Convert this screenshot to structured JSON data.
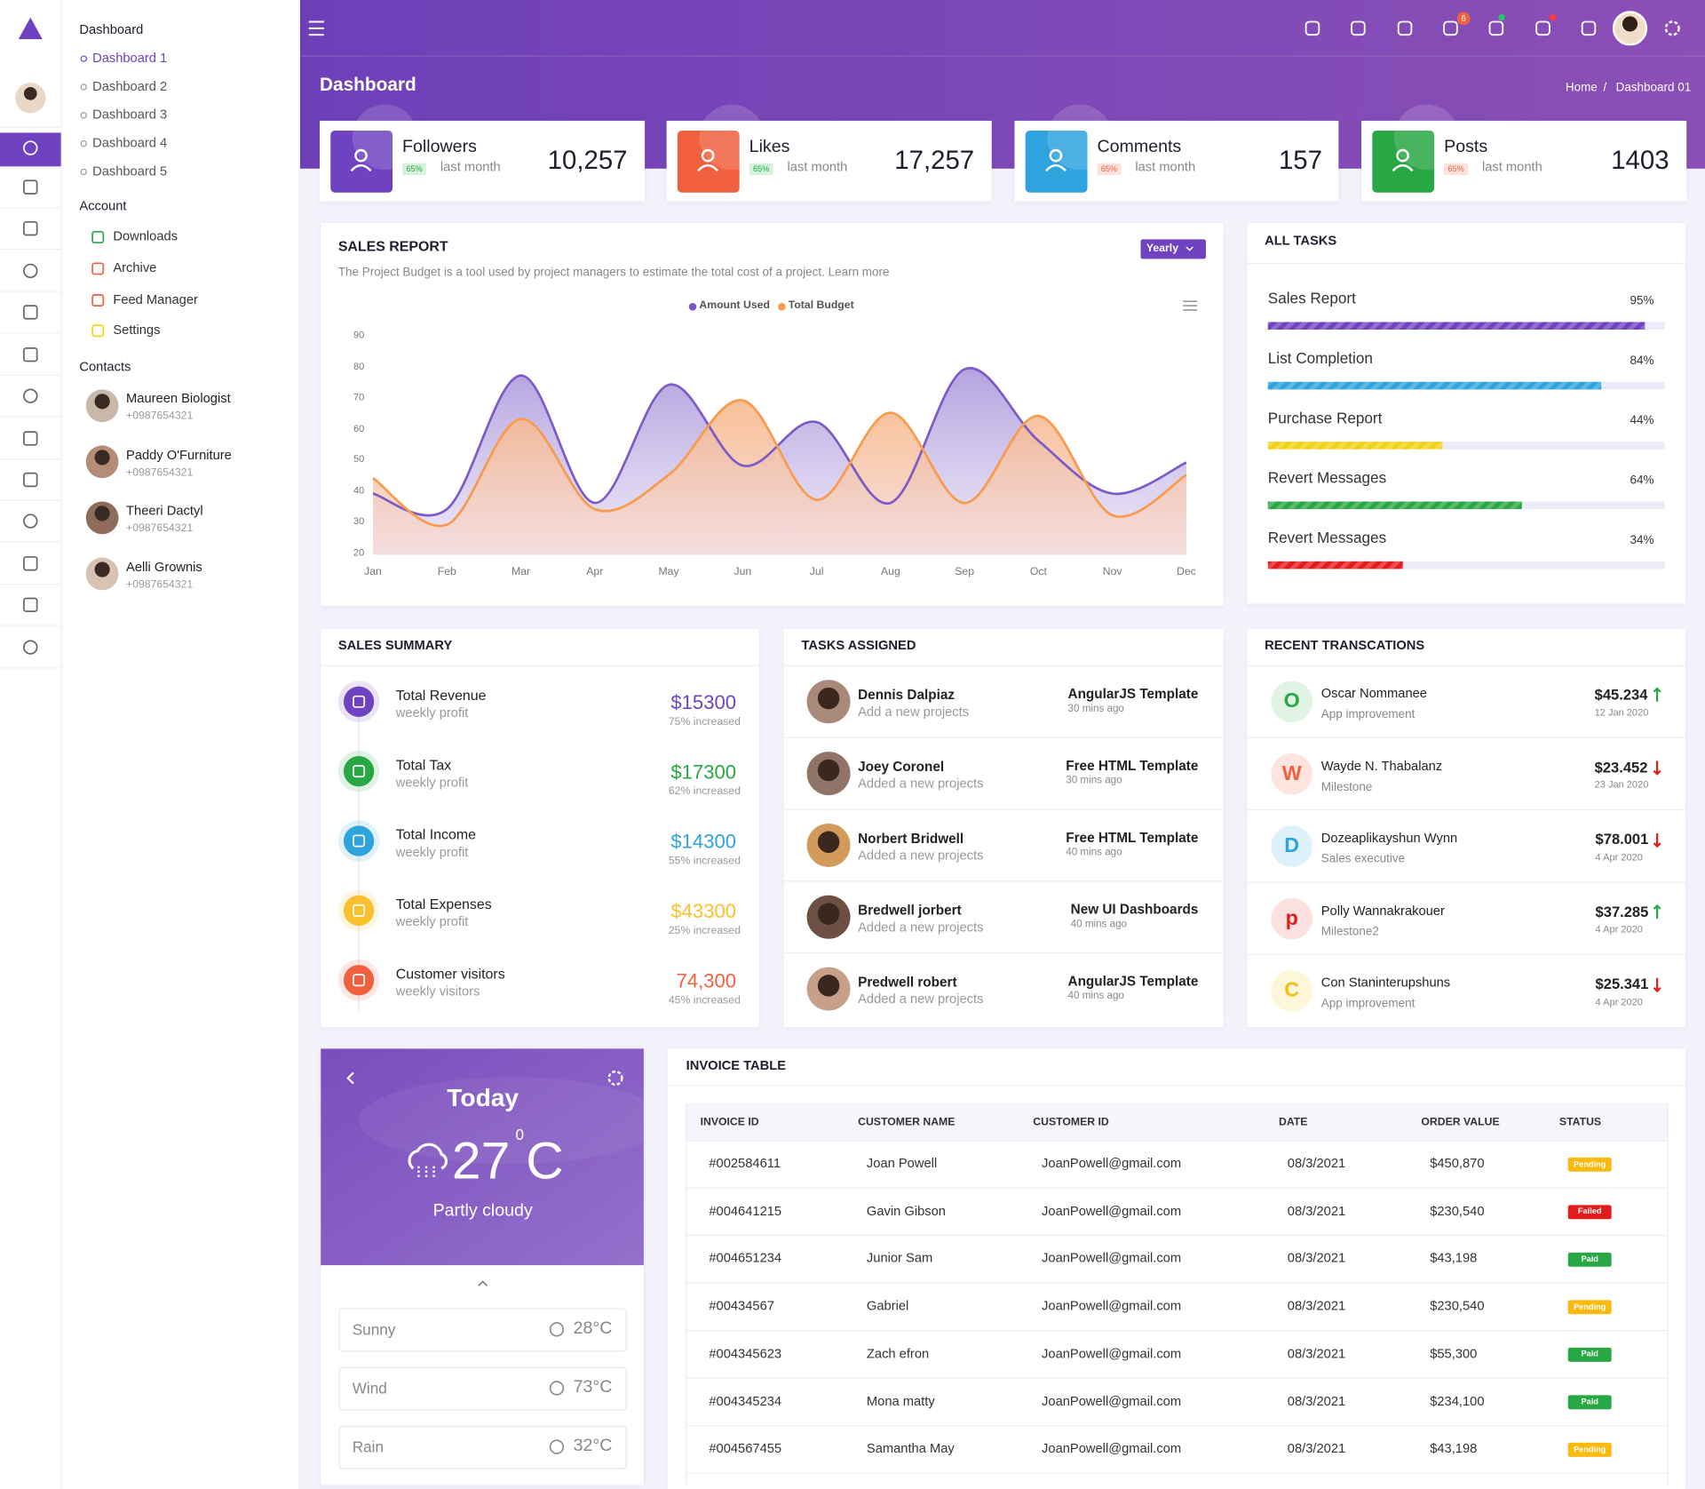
{
  "sidebar": {
    "dashboard_title": "Dashboard",
    "dashboard_items": [
      "Dashboard 1",
      "Dashboard 2",
      "Dashboard 3",
      "Dashboard 4",
      "Dashboard 5"
    ],
    "account_title": "Account",
    "account_items": [
      {
        "label": "Downloads",
        "color": "#28a745"
      },
      {
        "label": "Archive",
        "color": "#f0603f"
      },
      {
        "label": "Feed Manager",
        "color": "#f0603f"
      },
      {
        "label": "Settings",
        "color": "#f5d415"
      }
    ],
    "contacts_title": "Contacts",
    "contacts": [
      {
        "name": "Maureen Biologist",
        "phone": "+0987654321"
      },
      {
        "name": "Paddy O'Furniture",
        "phone": "+0987654321"
      },
      {
        "name": "Theeri Dactyl",
        "phone": "+0987654321"
      },
      {
        "name": "Aelli Grownis",
        "phone": "+0987654321"
      }
    ]
  },
  "header": {
    "title": "Dashboard",
    "breadcrumb_home": "Home",
    "breadcrumb_separator": "/",
    "breadcrumb_current": "Dashboard 01",
    "cart_badge": "6"
  },
  "stats": [
    {
      "title": "Followers",
      "badge": "65%",
      "period": "last month",
      "value": "10,257",
      "color": "#6f42c1",
      "badge_color": "#28a745",
      "badge_bg": "#d6f2dd"
    },
    {
      "title": "Likes",
      "badge": "65%",
      "period": "last month",
      "value": "17,257",
      "color": "#f0603f",
      "badge_color": "#28a745",
      "badge_bg": "#d6f2dd"
    },
    {
      "title": "Comments",
      "badge": "65%",
      "period": "last month",
      "value": "157",
      "color": "#2ea3dd",
      "badge_color": "#f0603f",
      "badge_bg": "#fde1dc"
    },
    {
      "title": "Posts",
      "badge": "65%",
      "period": "last month",
      "value": "1403",
      "color": "#28a745",
      "badge_color": "#f0603f",
      "badge_bg": "#fde1dc"
    }
  ],
  "chart_data": {
    "type": "area",
    "title": "SALES REPORT",
    "subtitle": "The Project Budget is a tool used by project managers to estimate the total cost of a project. Learn more",
    "button": "Yearly",
    "categories": [
      "Jan",
      "Feb",
      "Mar",
      "Apr",
      "May",
      "Jun",
      "Jul",
      "Aug",
      "Sep",
      "Oct",
      "Nov",
      "Dec"
    ],
    "series": [
      {
        "name": "Amount Used",
        "color": "#7d5bc6",
        "values": [
          39,
          34,
          77,
          36,
          74,
          48,
          62,
          36,
          79,
          56,
          39,
          49
        ]
      },
      {
        "name": "Total Budget",
        "color": "#f89b4c",
        "values": [
          44,
          29,
          63,
          34,
          45,
          69,
          37,
          65,
          36,
          64,
          32,
          45
        ]
      }
    ],
    "ylim": [
      20,
      90
    ],
    "yticks": [
      20,
      30,
      40,
      50,
      60,
      70,
      80,
      90
    ],
    "grid": false,
    "legend": "top"
  },
  "all_tasks": {
    "title": "ALL TASKS",
    "items": [
      {
        "name": "Sales Report",
        "progress": 95,
        "label": "95%",
        "color": "#6f42c1"
      },
      {
        "name": "List Completion",
        "progress": 84,
        "label": "84%",
        "color": "#2ea3dd"
      },
      {
        "name": "Purchase Report",
        "progress": 44,
        "label": "44%",
        "color": "#f2d214"
      },
      {
        "name": "Revert Messages",
        "progress": 64,
        "label": "64%",
        "color": "#28a745"
      },
      {
        "name": "Revert Messages",
        "progress": 34,
        "label": "34%",
        "color": "#e21b1b"
      }
    ]
  },
  "sales_summary": {
    "title": "SALES SUMMARY",
    "items": [
      {
        "name": "Total Revenue",
        "sub": "weekly profit",
        "value": "$15300",
        "note": "75% increased",
        "color": "#6f42c1"
      },
      {
        "name": "Total Tax",
        "sub": "weekly profit",
        "value": "$17300",
        "note": "62% increased",
        "color": "#28a745"
      },
      {
        "name": "Total Income",
        "sub": "weekly profit",
        "value": "$14300",
        "note": "55% increased",
        "color": "#2ea3dd"
      },
      {
        "name": "Total Expenses",
        "sub": "weekly profit",
        "value": "$43300",
        "note": "25% increased",
        "color": "#fbc02d"
      },
      {
        "name": "Customer visitors",
        "sub": "weekly visitors",
        "value": "74,300",
        "note": "45% increased",
        "color": "#f0603f"
      }
    ]
  },
  "tasks_assigned": {
    "title": "TASKS ASSIGNED",
    "items": [
      {
        "name": "Dennis Dalpiaz",
        "sub": "Add a new projects",
        "template": "AngularJS Template",
        "time": "30 mins ago"
      },
      {
        "name": "Joey Coronel",
        "sub": "Added a new projects",
        "template": "Free HTML Template",
        "time": "30 mins ago"
      },
      {
        "name": "Norbert Bridwell",
        "sub": "Added a new projects",
        "template": "Free HTML Template",
        "time": "40 mins ago"
      },
      {
        "name": "Bredwell jorbert",
        "sub": "Added a new projects",
        "template": "New UI Dashboards",
        "time": "40 mins ago"
      },
      {
        "name": "Predwell robert",
        "sub": "Added a new projects",
        "template": "AngularJS Template",
        "time": "40 mins ago"
      }
    ]
  },
  "transactions": {
    "title": "RECENT TRANSCATIONS",
    "items": [
      {
        "initial": "O",
        "name": "Oscar Nommanee",
        "sub": "App improvement",
        "amount": "$45.234",
        "date": "12 Jan 2020",
        "trend": "up",
        "color": "#28a745",
        "bg": "#dff4e4"
      },
      {
        "initial": "W",
        "name": "Wayde N. Thabalanz",
        "sub": "Milestone",
        "amount": "$23.452",
        "date": "23 Jan 2020",
        "trend": "down",
        "color": "#f0603f",
        "bg": "#fde4df"
      },
      {
        "initial": "D",
        "name": "Dozeaplikayshun Wynn",
        "sub": "Sales executive",
        "amount": "$78.001",
        "date": "4 Apr 2020",
        "trend": "down",
        "color": "#2ea3dd",
        "bg": "#ddf1fa"
      },
      {
        "initial": "p",
        "name": "Polly Wannakrakouer",
        "sub": "Milestone2",
        "amount": "$37.285",
        "date": "4 Apr 2020",
        "trend": "up",
        "color": "#e21b1b",
        "bg": "#fde0e0"
      },
      {
        "initial": "C",
        "name": "Con Staninterupshuns",
        "sub": "App improvement",
        "amount": "$25.341",
        "date": "4 Apr 2020",
        "trend": "down",
        "color": "#f2c00f",
        "bg": "#fdf6d8"
      }
    ]
  },
  "weather": {
    "day": "Today",
    "temp": "27",
    "degree": "0",
    "unit": "C",
    "condition": "Partly cloudy",
    "rows": [
      {
        "label": "Sunny",
        "value": "28°C"
      },
      {
        "label": "Wind",
        "value": "73°C"
      },
      {
        "label": "Rain",
        "value": "32°C"
      }
    ]
  },
  "invoice": {
    "title": "INVOICE TABLE",
    "columns": [
      "INVOICE ID",
      "CUSTOMER NAME",
      "CUSTOMER ID",
      "DATE",
      "ORDER VALUE",
      "STATUS"
    ],
    "rows": [
      [
        "#002584611",
        "Joan Powell",
        "JoanPowell@gmail.com",
        "08/3/2021",
        "$450,870",
        {
          "label": "Pending",
          "color": "#f9b90f"
        }
      ],
      [
        "#004641215",
        "Gavin Gibson",
        "JoanPowell@gmail.com",
        "08/3/2021",
        "$230,540",
        {
          "label": "Failed",
          "color": "#e21b1b"
        }
      ],
      [
        "#004651234",
        "Junior Sam",
        "JoanPowell@gmail.com",
        "08/3/2021",
        "$43,198",
        {
          "label": "Paid",
          "color": "#28a745"
        }
      ],
      [
        "#00434567",
        "Gabriel",
        "JoanPowell@gmail.com",
        "08/3/2021",
        "$230,540",
        {
          "label": "Pending",
          "color": "#f9b90f"
        }
      ],
      [
        "#004345623",
        "Zach efron",
        "JoanPowell@gmail.com",
        "08/3/2021",
        "$55,300",
        {
          "label": "Paid",
          "color": "#28a745"
        }
      ],
      [
        "#004345234",
        "Mona matty",
        "JoanPowell@gmail.com",
        "08/3/2021",
        "$234,100",
        {
          "label": "Paid",
          "color": "#28a745"
        }
      ],
      [
        "#004567455",
        "Samantha May",
        "JoanPowell@gmail.com",
        "08/3/2021",
        "$43,198",
        {
          "label": "Pending",
          "color": "#f9b90f"
        }
      ]
    ]
  }
}
